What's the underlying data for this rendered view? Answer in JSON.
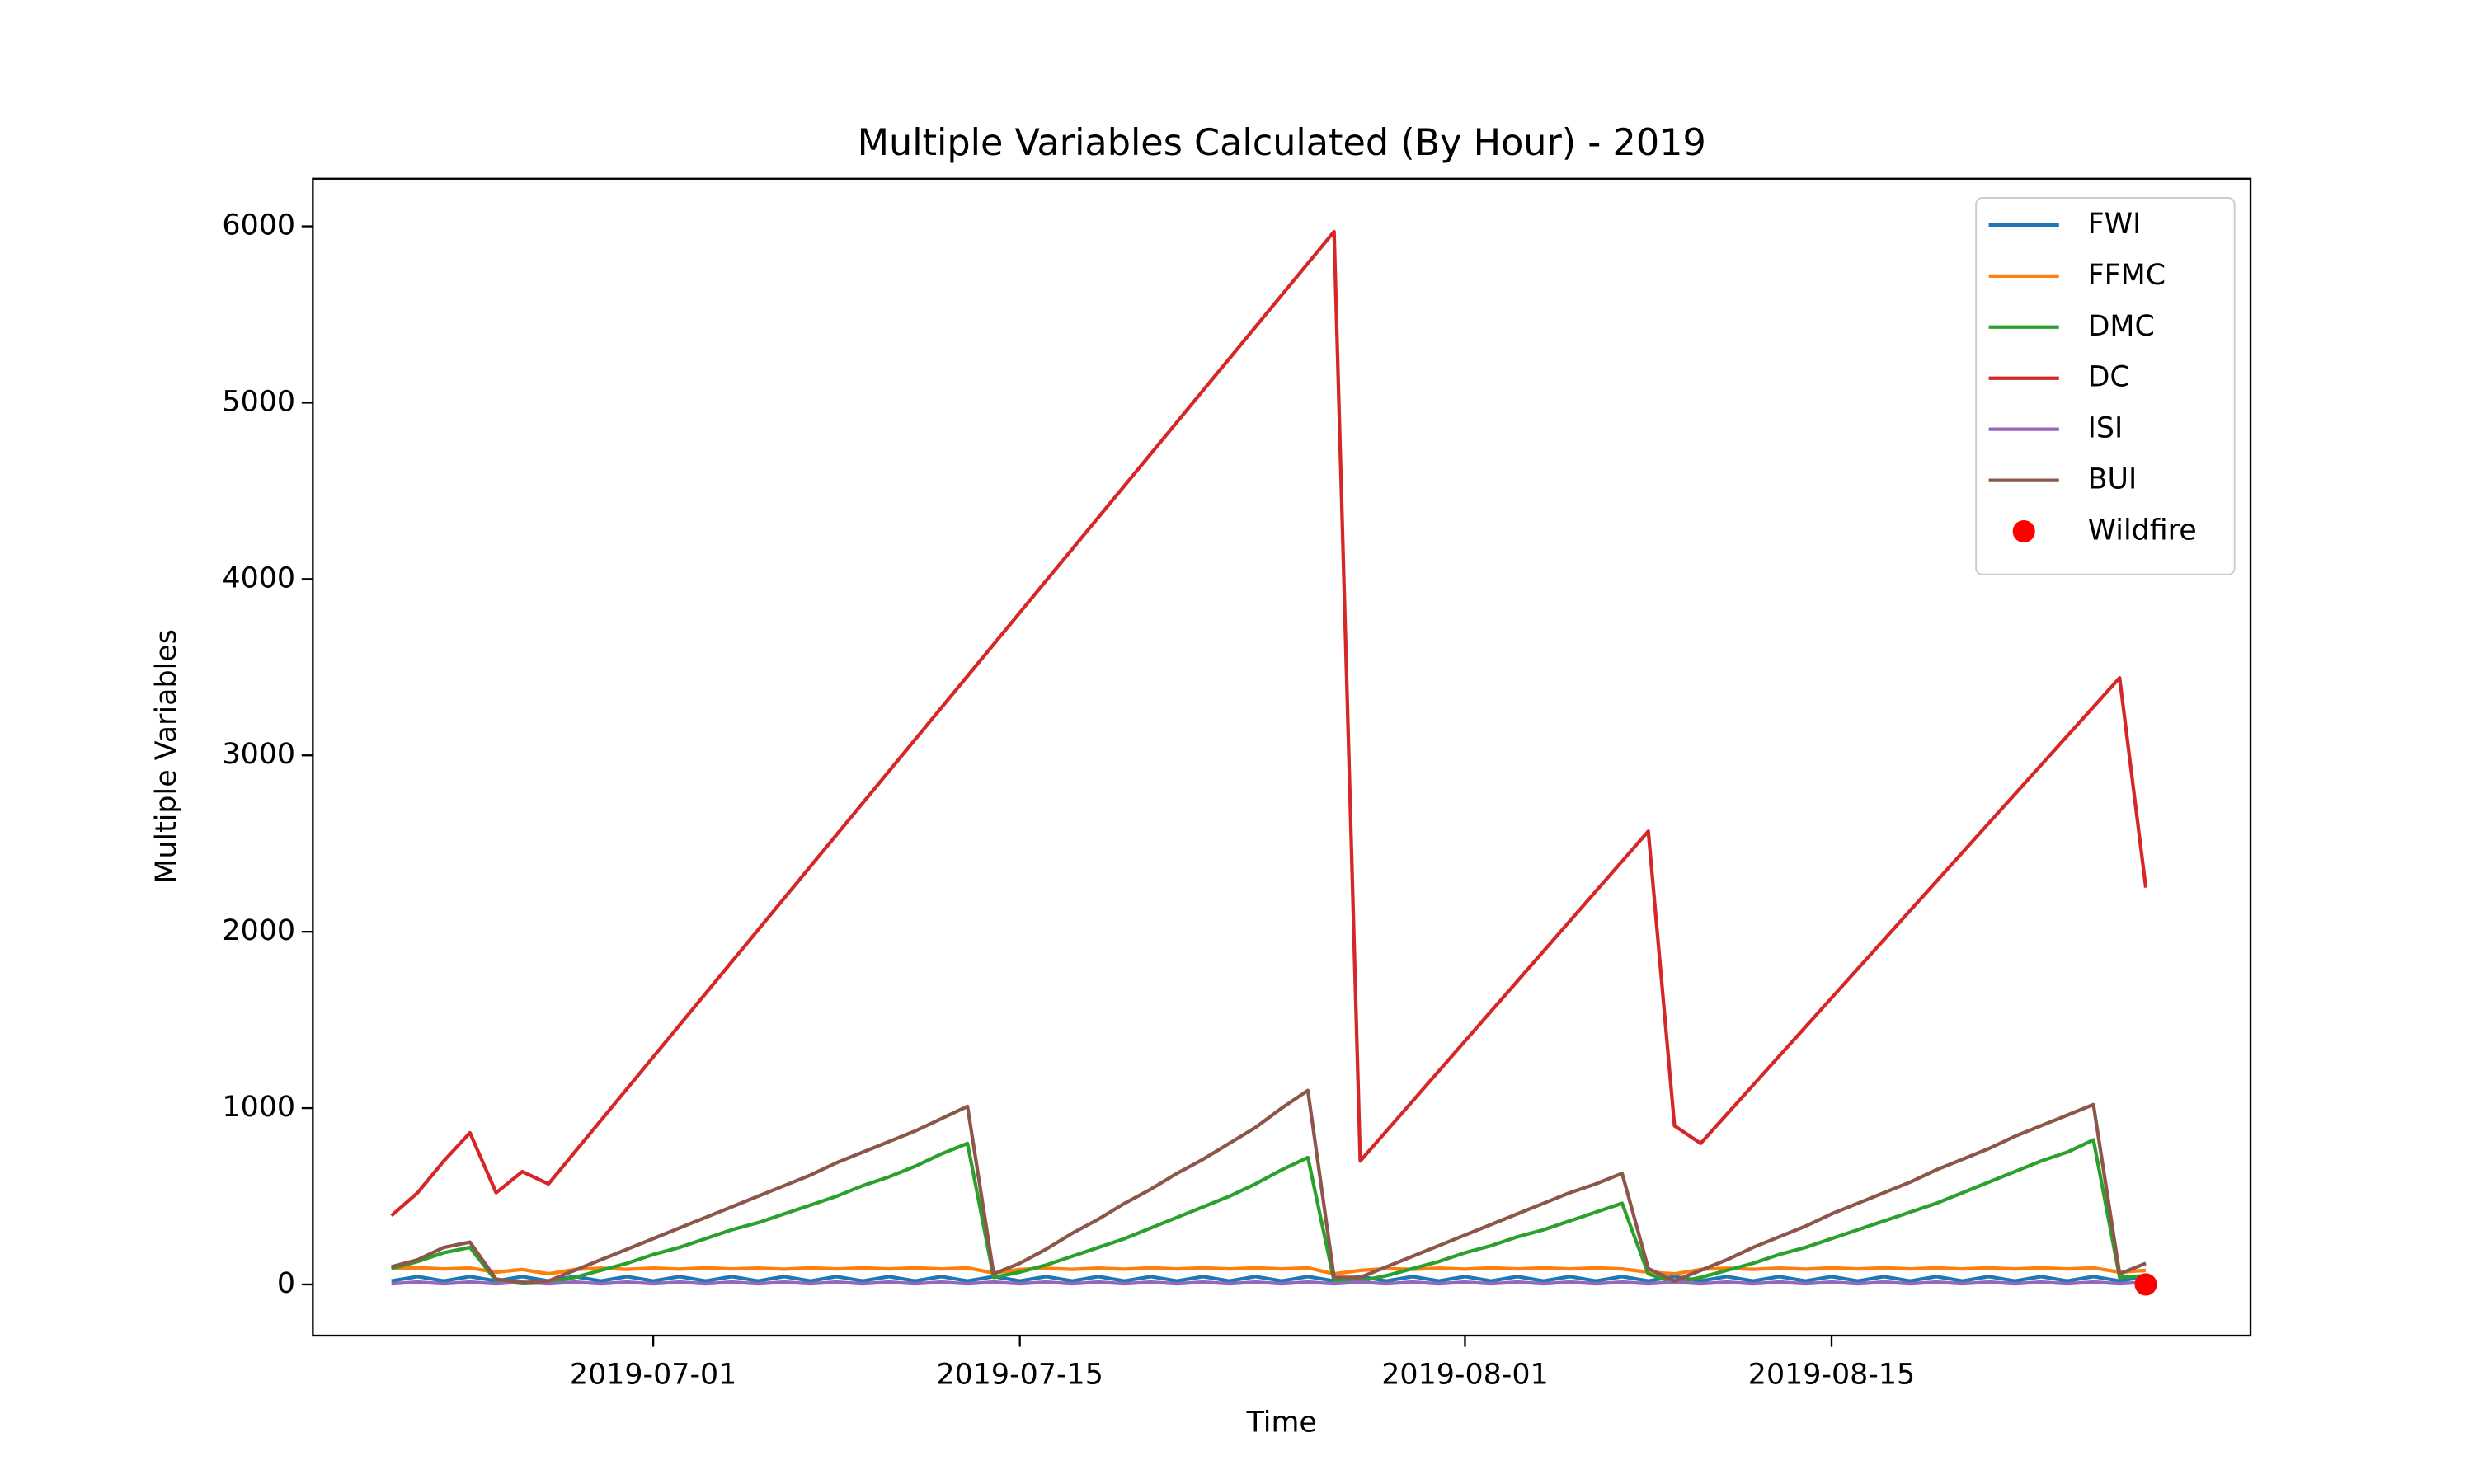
{
  "chart_data": {
    "type": "line",
    "title": "Multiple Variables Calculated (By Hour) - 2019",
    "x_label": "Time",
    "y_label": "Multiple Variables",
    "x": [
      "2019-06-21",
      "2019-06-22",
      "2019-06-23",
      "2019-06-24",
      "2019-06-25",
      "2019-06-26",
      "2019-06-27",
      "2019-06-28",
      "2019-06-29",
      "2019-06-30",
      "2019-07-01",
      "2019-07-02",
      "2019-07-03",
      "2019-07-04",
      "2019-07-05",
      "2019-07-06",
      "2019-07-07",
      "2019-07-08",
      "2019-07-09",
      "2019-07-10",
      "2019-07-11",
      "2019-07-12",
      "2019-07-13",
      "2019-07-14",
      "2019-07-15",
      "2019-07-16",
      "2019-07-17",
      "2019-07-18",
      "2019-07-19",
      "2019-07-20",
      "2019-07-21",
      "2019-07-22",
      "2019-07-23",
      "2019-07-24",
      "2019-07-25",
      "2019-07-26",
      "2019-07-27",
      "2019-07-28",
      "2019-07-29",
      "2019-07-30",
      "2019-07-31",
      "2019-08-01",
      "2019-08-02",
      "2019-08-03",
      "2019-08-04",
      "2019-08-05",
      "2019-08-06",
      "2019-08-07",
      "2019-08-08",
      "2019-08-09",
      "2019-08-10",
      "2019-08-11",
      "2019-08-12",
      "2019-08-13",
      "2019-08-14",
      "2019-08-15",
      "2019-08-16",
      "2019-08-17",
      "2019-08-18",
      "2019-08-19",
      "2019-08-20",
      "2019-08-21",
      "2019-08-22",
      "2019-08-23",
      "2019-08-24",
      "2019-08-25",
      "2019-08-26",
      "2019-08-27"
    ],
    "series": [
      {
        "name": "FWI",
        "color": "#1f77b4",
        "values": [
          20,
          45,
          20,
          45,
          20,
          45,
          20,
          45,
          20,
          45,
          20,
          45,
          20,
          45,
          20,
          45,
          20,
          45,
          20,
          45,
          20,
          45,
          20,
          45,
          20,
          45,
          20,
          45,
          20,
          45,
          20,
          45,
          20,
          45,
          20,
          45,
          20,
          45,
          20,
          45,
          20,
          45,
          20,
          45,
          20,
          45,
          20,
          45,
          20,
          45,
          20,
          45,
          20,
          45,
          20,
          45,
          20,
          45,
          20,
          45,
          20,
          45,
          20,
          45,
          20,
          45,
          20,
          45
        ]
      },
      {
        "name": "FFMC",
        "color": "#ff7f0e",
        "values": [
          90,
          95,
          88,
          93,
          70,
          85,
          60,
          85,
          92,
          86,
          93,
          87,
          94,
          88,
          93,
          87,
          94,
          88,
          94,
          88,
          94,
          88,
          94,
          65,
          85,
          92,
          86,
          93,
          87,
          94,
          88,
          94,
          88,
          94,
          88,
          94,
          60,
          80,
          90,
          86,
          93,
          87,
          94,
          88,
          94,
          88,
          94,
          88,
          70,
          60,
          85,
          92,
          86,
          93,
          87,
          94,
          88,
          94,
          88,
          94,
          88,
          94,
          88,
          94,
          88,
          94,
          70,
          80
        ]
      },
      {
        "name": "DMC",
        "color": "#2ca02c",
        "values": [
          90,
          130,
          180,
          210,
          20,
          5,
          10,
          40,
          80,
          120,
          170,
          210,
          260,
          310,
          350,
          400,
          450,
          500,
          560,
          610,
          670,
          740,
          800,
          40,
          70,
          110,
          160,
          210,
          260,
          320,
          380,
          440,
          500,
          570,
          650,
          720,
          20,
          20,
          50,
          90,
          130,
          180,
          220,
          270,
          310,
          360,
          410,
          460,
          60,
          10,
          40,
          80,
          120,
          170,
          210,
          260,
          310,
          360,
          410,
          460,
          520,
          580,
          640,
          700,
          750,
          820,
          40,
          50
        ]
      },
      {
        "name": "DC",
        "color": "#d62728",
        "values": [
          390,
          520,
          700,
          860,
          520,
          640,
          570,
          750,
          930,
          1110,
          1290,
          1470,
          1650,
          1830,
          2010,
          2190,
          2370,
          2550,
          2730,
          2910,
          3090,
          3270,
          3450,
          3630,
          3810,
          3990,
          4170,
          4350,
          4530,
          4710,
          4890,
          5070,
          5250,
          5430,
          5610,
          5790,
          5970,
          700,
          870,
          1040,
          1210,
          1380,
          1550,
          1720,
          1890,
          2060,
          2230,
          2400,
          2570,
          900,
          800,
          965,
          1130,
          1295,
          1460,
          1625,
          1790,
          1955,
          2120,
          2285,
          2450,
          2615,
          2780,
          2945,
          3110,
          3275,
          3440,
          2250
        ]
      },
      {
        "name": "ISI",
        "color": "#9467bd",
        "values": [
          4,
          14,
          4,
          14,
          4,
          14,
          4,
          14,
          4,
          14,
          4,
          14,
          4,
          14,
          4,
          14,
          4,
          14,
          4,
          14,
          4,
          14,
          4,
          14,
          4,
          14,
          4,
          14,
          4,
          14,
          4,
          14,
          4,
          14,
          4,
          14,
          4,
          14,
          4,
          14,
          4,
          14,
          4,
          14,
          4,
          14,
          4,
          14,
          4,
          14,
          4,
          14,
          4,
          14,
          4,
          14,
          4,
          14,
          4,
          14,
          4,
          14,
          4,
          14,
          4,
          14,
          4,
          14
        ]
      },
      {
        "name": "BUI",
        "color": "#8c564b",
        "values": [
          100,
          140,
          210,
          240,
          30,
          10,
          20,
          80,
          140,
          200,
          260,
          320,
          380,
          440,
          500,
          560,
          620,
          690,
          750,
          810,
          870,
          940,
          1010,
          60,
          120,
          200,
          290,
          370,
          460,
          540,
          630,
          710,
          800,
          890,
          1000,
          1100,
          40,
          40,
          100,
          160,
          220,
          280,
          340,
          400,
          460,
          520,
          570,
          630,
          90,
          20,
          80,
          140,
          210,
          270,
          330,
          400,
          460,
          520,
          580,
          650,
          710,
          770,
          840,
          900,
          960,
          1020,
          60,
          120
        ]
      },
      {
        "name": "Wildfire",
        "color": "red",
        "marker": "scatter",
        "x": [
          "2019-08-27"
        ],
        "values": [
          0
        ]
      }
    ],
    "xlim": [
      "2019-06-18",
      "2019-08-31"
    ],
    "xticks": [
      "2019-07-01",
      "2019-07-15",
      "2019-08-01",
      "2019-08-15"
    ],
    "ylim": [
      -290,
      6270
    ],
    "yticks": [
      0,
      1000,
      2000,
      3000,
      4000,
      5000,
      6000
    ],
    "legend": "upper right"
  }
}
